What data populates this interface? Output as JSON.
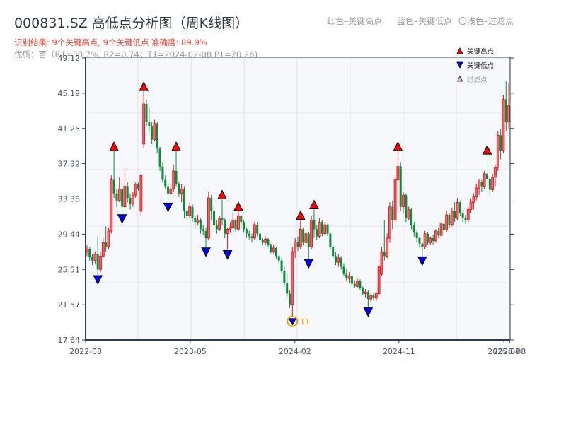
{
  "header": {
    "title": "000831.SZ 高低点分析图（周K线图）",
    "result_line": "识别结果: 9个关键高点, 9个关键低点  准确度: 89.9%",
    "quality_line": "优质：否（R1=38.7%, R2=0.74；T1=2024-02-08 P1=20.26)"
  },
  "top_legend": {
    "red": "红色–关键高点",
    "blue": "蓝色–关键低点",
    "filtered": "〇浅色–过滤点"
  },
  "colors": {
    "up": "#d8121c",
    "down": "#0f8a3a",
    "high_marker": "#ff0000",
    "low_marker": "#0000ee",
    "t1_ring": "#f39c12",
    "plot_bg": "#f6f8fb",
    "grid": "#e1e5ea",
    "axis": "#2c3e50"
  },
  "chart_data": {
    "type": "candlestick",
    "title": "000831.SZ 高低点分析图（周K线图）",
    "xlabel": "",
    "ylabel": "",
    "ylim": [
      17.64,
      49.12
    ],
    "y_ticks": [
      "49.12",
      "45.19",
      "41.25",
      "37.32",
      "33.38",
      "29.44",
      "25.51",
      "21.57",
      "17.64"
    ],
    "x_ticks": [
      {
        "label": "2022-08",
        "index": -0.5
      },
      {
        "label": "2023-05",
        "index": 38.2
      },
      {
        "label": "2024-02",
        "index": 76.9
      },
      {
        "label": "2024-11",
        "index": 115.4
      },
      {
        "label": "2025-07",
        "index": 154.2
      },
      {
        "label": "2025-08",
        "index": 156.3
      }
    ],
    "grid": true,
    "legend": {
      "position": "top-right",
      "entries": [
        {
          "label": "关键高点",
          "symbol": "triangle-up",
          "color": "#ff0000"
        },
        {
          "label": "关键低点",
          "symbol": "triangle-down",
          "color": "#0000ee"
        },
        {
          "label": "过滤点",
          "symbol": "triangle-up-light",
          "color": "#f4c2c2"
        }
      ]
    },
    "period": "weekly",
    "start": "2022-08",
    "end": "2025-08",
    "ohlc": [
      [
        27.5,
        28.2,
        27.0,
        27.8
      ],
      [
        27.8,
        28.0,
        26.5,
        26.9
      ],
      [
        26.9,
        27.2,
        26.0,
        26.5
      ],
      [
        26.5,
        27.5,
        26.2,
        27.2
      ],
      [
        27.2,
        29.2,
        24.9,
        25.5
      ],
      [
        25.5,
        27.5,
        25.2,
        27.0
      ],
      [
        27.0,
        29.0,
        26.8,
        28.5
      ],
      [
        28.5,
        30.3,
        27.5,
        28.0
      ],
      [
        28.0,
        30.2,
        27.8,
        29.8
      ],
      [
        29.8,
        36.0,
        29.5,
        35.5
      ],
      [
        35.5,
        38.7,
        33.5,
        34.0
      ],
      [
        34.0,
        34.5,
        32.5,
        33.2
      ],
      [
        33.2,
        35.8,
        33.0,
        34.5
      ],
      [
        34.5,
        35.0,
        31.7,
        32.5
      ],
      [
        32.5,
        36.8,
        32.3,
        34.8
      ],
      [
        34.8,
        35.2,
        33.0,
        33.5
      ],
      [
        33.5,
        34.0,
        32.2,
        32.8
      ],
      [
        32.8,
        34.2,
        32.5,
        33.8
      ],
      [
        33.8,
        35.2,
        33.5,
        35.0
      ],
      [
        35.0,
        35.2,
        34.3,
        34.5
      ],
      [
        32.0,
        36.2,
        31.5,
        36.0
      ],
      [
        39.5,
        45.4,
        39.0,
        44.0
      ],
      [
        44.0,
        44.5,
        41.5,
        42.0
      ],
      [
        42.0,
        43.5,
        40.8,
        41.5
      ],
      [
        41.5,
        42.0,
        39.5,
        40.0
      ],
      [
        40.0,
        42.2,
        39.8,
        41.8
      ],
      [
        41.8,
        42.0,
        38.5,
        39.0
      ],
      [
        39.0,
        39.2,
        36.5,
        37.0
      ],
      [
        37.0,
        37.5,
        35.2,
        35.5
      ],
      [
        35.5,
        36.0,
        34.5,
        34.8
      ],
      [
        34.8,
        35.0,
        33.0,
        34.0
      ],
      [
        34.0,
        35.0,
        33.8,
        34.5
      ],
      [
        34.5,
        37.2,
        34.2,
        36.5
      ],
      [
        36.5,
        38.7,
        34.8,
        35.0
      ],
      [
        35.0,
        35.3,
        33.6,
        34.0
      ],
      [
        34.0,
        35.0,
        33.0,
        34.5
      ],
      [
        34.5,
        34.8,
        31.2,
        32.0
      ],
      [
        32.0,
        32.2,
        31.0,
        31.5
      ],
      [
        31.5,
        33.0,
        31.2,
        32.5
      ],
      [
        32.5,
        32.8,
        30.8,
        31.2
      ],
      [
        31.2,
        31.5,
        30.2,
        30.8
      ],
      [
        30.8,
        31.6,
        30.5,
        31.0
      ],
      [
        31.0,
        31.2,
        29.5,
        30.0
      ],
      [
        30.0,
        30.5,
        29.3,
        29.8
      ],
      [
        29.8,
        30.2,
        28.0,
        29.0
      ],
      [
        29.0,
        34.2,
        28.8,
        33.5
      ],
      [
        33.5,
        33.8,
        31.0,
        32.0
      ],
      [
        32.0,
        32.3,
        30.0,
        30.5
      ],
      [
        30.5,
        31.0,
        29.5,
        30.0
      ],
      [
        30.0,
        31.5,
        29.8,
        31.2
      ],
      [
        31.2,
        33.3,
        30.5,
        31.0
      ],
      [
        31.0,
        31.2,
        29.0,
        29.5
      ],
      [
        29.5,
        30.2,
        27.7,
        30.0
      ],
      [
        30.0,
        30.8,
        29.6,
        30.2
      ],
      [
        30.2,
        31.8,
        30.0,
        31.0
      ],
      [
        31.0,
        31.2,
        29.6,
        30.0
      ],
      [
        30.0,
        32.0,
        29.8,
        31.5
      ],
      [
        31.5,
        31.6,
        30.2,
        30.8
      ],
      [
        30.8,
        31.0,
        29.6,
        30.0
      ],
      [
        30.0,
        30.2,
        29.0,
        29.5
      ],
      [
        29.5,
        29.8,
        28.8,
        29.2
      ],
      [
        29.2,
        29.5,
        28.5,
        29.0
      ],
      [
        29.0,
        30.8,
        28.8,
        30.5
      ],
      [
        30.5,
        30.8,
        29.2,
        29.5
      ],
      [
        29.5,
        29.8,
        28.6,
        28.8
      ],
      [
        28.8,
        29.0,
        28.2,
        28.5
      ],
      [
        28.5,
        29.2,
        28.3,
        28.9
      ],
      [
        28.9,
        29.0,
        28.0,
        28.2
      ],
      [
        28.2,
        28.4,
        27.3,
        27.5
      ],
      [
        27.5,
        28.2,
        27.3,
        27.9
      ],
      [
        27.9,
        28.0,
        26.7,
        27.0
      ],
      [
        27.0,
        27.2,
        26.2,
        26.5
      ],
      [
        26.5,
        26.8,
        25.0,
        25.3
      ],
      [
        25.3,
        25.8,
        23.6,
        24.0
      ],
      [
        24.0,
        25.0,
        22.3,
        22.8
      ],
      [
        22.8,
        23.2,
        21.2,
        21.6
      ],
      [
        21.6,
        28.0,
        20.26,
        27.5
      ],
      [
        27.5,
        29.0,
        26.8,
        28.6
      ],
      [
        28.6,
        29.2,
        27.6,
        28.0
      ],
      [
        28.0,
        31.0,
        27.8,
        30.0
      ],
      [
        30.0,
        30.2,
        28.2,
        28.5
      ],
      [
        28.5,
        29.8,
        28.3,
        29.5
      ],
      [
        29.5,
        29.7,
        26.7,
        28.0
      ],
      [
        28.0,
        31.5,
        27.8,
        31.0
      ],
      [
        31.0,
        32.2,
        29.0,
        30.0
      ],
      [
        30.0,
        30.5,
        28.8,
        29.2
      ],
      [
        29.2,
        31.2,
        29.0,
        30.8
      ],
      [
        30.8,
        31.0,
        29.2,
        29.5
      ],
      [
        29.5,
        30.8,
        29.3,
        30.5
      ],
      [
        30.5,
        30.6,
        29.2,
        29.5
      ],
      [
        29.5,
        29.7,
        27.8,
        28.0
      ],
      [
        28.0,
        28.2,
        26.8,
        27.0
      ],
      [
        27.0,
        27.5,
        26.0,
        26.3
      ],
      [
        26.3,
        27.2,
        25.8,
        26.8
      ],
      [
        26.8,
        27.0,
        25.6,
        25.8
      ],
      [
        25.8,
        26.2,
        24.8,
        25.0
      ],
      [
        25.0,
        25.6,
        24.2,
        24.5
      ],
      [
        24.5,
        25.2,
        24.0,
        24.8
      ],
      [
        24.8,
        25.0,
        23.6,
        23.9
      ],
      [
        23.9,
        24.3,
        23.4,
        23.6
      ],
      [
        23.6,
        24.5,
        23.4,
        24.2
      ],
      [
        24.2,
        24.4,
        23.2,
        23.4
      ],
      [
        23.4,
        23.6,
        22.6,
        22.8
      ],
      [
        22.8,
        23.3,
        22.4,
        23.0
      ],
      [
        23.0,
        23.2,
        21.3,
        22.2
      ],
      [
        22.2,
        22.8,
        21.8,
        22.6
      ],
      [
        22.6,
        22.9,
        22.0,
        22.3
      ],
      [
        22.3,
        23.0,
        22.0,
        22.8
      ],
      [
        22.8,
        26.0,
        22.6,
        25.8
      ],
      [
        25.0,
        28.0,
        24.8,
        27.5
      ],
      [
        27.5,
        31.0,
        26.5,
        27.0
      ],
      [
        27.0,
        29.5,
        26.8,
        29.0
      ],
      [
        29.0,
        33.0,
        28.5,
        32.5
      ],
      [
        32.5,
        33.2,
        30.0,
        31.0
      ],
      [
        31.0,
        36.0,
        30.8,
        35.5
      ],
      [
        35.5,
        38.7,
        32.0,
        37.0
      ],
      [
        37.0,
        37.5,
        32.0,
        32.5
      ],
      [
        32.5,
        34.2,
        31.8,
        33.8
      ],
      [
        33.8,
        34.0,
        30.8,
        31.2
      ],
      [
        31.2,
        32.5,
        31.0,
        32.2
      ],
      [
        32.2,
        32.4,
        30.0,
        30.5
      ],
      [
        30.5,
        30.8,
        29.2,
        29.6
      ],
      [
        29.6,
        29.9,
        28.6,
        29.0
      ],
      [
        29.0,
        29.2,
        28.0,
        28.4
      ],
      [
        28.4,
        28.6,
        27.0,
        28.0
      ],
      [
        28.0,
        29.8,
        27.8,
        29.5
      ],
      [
        29.5,
        29.7,
        28.2,
        28.5
      ],
      [
        28.5,
        29.2,
        28.2,
        29.0
      ],
      [
        29.0,
        29.4,
        28.3,
        28.7
      ],
      [
        28.7,
        30.0,
        28.5,
        29.8
      ],
      [
        29.8,
        30.2,
        29.0,
        29.3
      ],
      [
        29.3,
        31.0,
        29.0,
        30.6
      ],
      [
        30.6,
        30.9,
        29.5,
        29.9
      ],
      [
        29.9,
        32.0,
        29.7,
        31.6
      ],
      [
        31.6,
        31.8,
        30.2,
        30.5
      ],
      [
        30.5,
        32.4,
        30.3,
        32.0
      ],
      [
        32.0,
        33.0,
        30.8,
        31.2
      ],
      [
        31.2,
        33.5,
        31.0,
        33.0
      ],
      [
        33.0,
        33.2,
        31.5,
        31.8
      ],
      [
        31.8,
        32.0,
        30.8,
        31.2
      ],
      [
        31.2,
        31.6,
        30.6,
        31.0
      ],
      [
        31.0,
        32.5,
        30.8,
        32.2
      ],
      [
        32.2,
        33.4,
        31.8,
        33.0
      ],
      [
        33.0,
        34.0,
        32.2,
        33.6
      ],
      [
        33.6,
        35.0,
        33.2,
        34.6
      ],
      [
        34.6,
        35.6,
        33.8,
        35.3
      ],
      [
        35.3,
        35.5,
        34.2,
        34.8
      ],
      [
        34.8,
        36.5,
        34.5,
        36.2
      ],
      [
        36.2,
        38.3,
        35.0,
        35.6
      ],
      [
        35.6,
        35.8,
        33.8,
        34.4
      ],
      [
        34.4,
        36.2,
        34.2,
        35.8
      ],
      [
        35.8,
        37.2,
        34.8,
        36.9
      ],
      [
        36.9,
        41.0,
        36.5,
        40.5
      ],
      [
        40.5,
        41.2,
        37.8,
        38.8
      ],
      [
        38.8,
        45.0,
        38.5,
        44.5
      ],
      [
        44.5,
        46.5,
        41.0,
        42.0
      ],
      [
        42.0,
        46.3,
        41.2,
        43.8
      ]
    ],
    "key_highs": [
      {
        "index": 10,
        "price": 38.7
      },
      {
        "index": 21,
        "price": 45.4
      },
      {
        "index": 33,
        "price": 38.7
      },
      {
        "index": 50,
        "price": 33.3
      },
      {
        "index": 56,
        "price": 32.0
      },
      {
        "index": 79,
        "price": 31.0
      },
      {
        "index": 84,
        "price": 32.2
      },
      {
        "index": 115,
        "price": 38.7
      },
      {
        "index": 148,
        "price": 38.3
      }
    ],
    "key_lows": [
      {
        "index": 4,
        "price": 24.9
      },
      {
        "index": 13,
        "price": 31.7
      },
      {
        "index": 30,
        "price": 33.0
      },
      {
        "index": 44,
        "price": 28.0
      },
      {
        "index": 52,
        "price": 27.7
      },
      {
        "index": 76,
        "price": 20.26,
        "label": "T1",
        "date": "2024-02-08"
      },
      {
        "index": 82,
        "price": 26.7
      },
      {
        "index": 104,
        "price": 21.3
      },
      {
        "index": 124,
        "price": 27.0
      }
    ],
    "summary": {
      "key_high_count": 9,
      "key_low_count": 9,
      "accuracy": "89.9%",
      "quality": "否",
      "R1": "38.7%",
      "R2": "0.74",
      "T1": "2024-02-08",
      "P1": "20.26"
    }
  }
}
